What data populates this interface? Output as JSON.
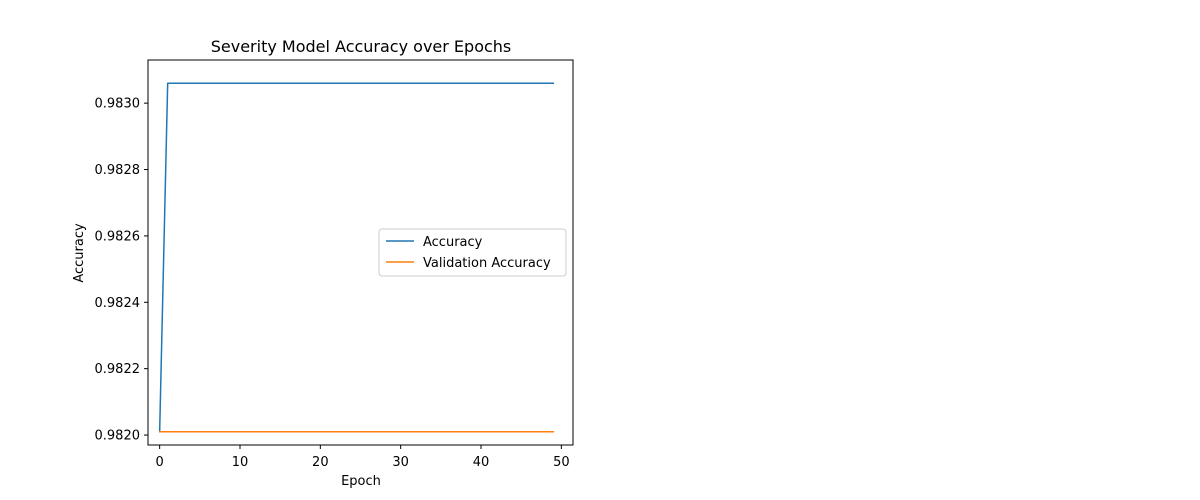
{
  "chart_data": {
    "type": "line",
    "title": "Severity Model Accuracy over Epochs",
    "xlabel": "Epoch",
    "ylabel": "Accuracy",
    "xlim": [
      -1.45,
      51.45
    ],
    "ylim": [
      0.98197,
      0.98313
    ],
    "x_ticks": [
      0,
      10,
      20,
      30,
      40,
      50
    ],
    "y_ticks": [
      0.982,
      0.9822,
      0.9824,
      0.9826,
      0.9828,
      0.983
    ],
    "y_tick_labels": [
      "0.9820",
      "0.9822",
      "0.9824",
      "0.9826",
      "0.9828",
      "0.9830"
    ],
    "grid": false,
    "legend_position": "center-right",
    "series": [
      {
        "name": "Accuracy",
        "color": "#1f77b4",
        "x_start": 0,
        "x_end": 49,
        "values": [
          0.98201,
          0.98306,
          0.98306,
          0.98306,
          0.98306,
          0.98306,
          0.98306,
          0.98306,
          0.98306,
          0.98306,
          0.98306,
          0.98306,
          0.98306,
          0.98306,
          0.98306,
          0.98306,
          0.98306,
          0.98306,
          0.98306,
          0.98306,
          0.98306,
          0.98306,
          0.98306,
          0.98306,
          0.98306,
          0.98306,
          0.98306,
          0.98306,
          0.98306,
          0.98306,
          0.98306,
          0.98306,
          0.98306,
          0.98306,
          0.98306,
          0.98306,
          0.98306,
          0.98306,
          0.98306,
          0.98306,
          0.98306,
          0.98306,
          0.98306,
          0.98306,
          0.98306,
          0.98306,
          0.98306,
          0.98306,
          0.98306,
          0.98306
        ]
      },
      {
        "name": "Validation Accuracy",
        "color": "#ff7f0e",
        "x_start": 0,
        "x_end": 49,
        "values": [
          0.98201,
          0.98201,
          0.98201,
          0.98201,
          0.98201,
          0.98201,
          0.98201,
          0.98201,
          0.98201,
          0.98201,
          0.98201,
          0.98201,
          0.98201,
          0.98201,
          0.98201,
          0.98201,
          0.98201,
          0.98201,
          0.98201,
          0.98201,
          0.98201,
          0.98201,
          0.98201,
          0.98201,
          0.98201,
          0.98201,
          0.98201,
          0.98201,
          0.98201,
          0.98201,
          0.98201,
          0.98201,
          0.98201,
          0.98201,
          0.98201,
          0.98201,
          0.98201,
          0.98201,
          0.98201,
          0.98201,
          0.98201,
          0.98201,
          0.98201,
          0.98201,
          0.98201,
          0.98201,
          0.98201,
          0.98201,
          0.98201,
          0.98201
        ]
      }
    ]
  }
}
